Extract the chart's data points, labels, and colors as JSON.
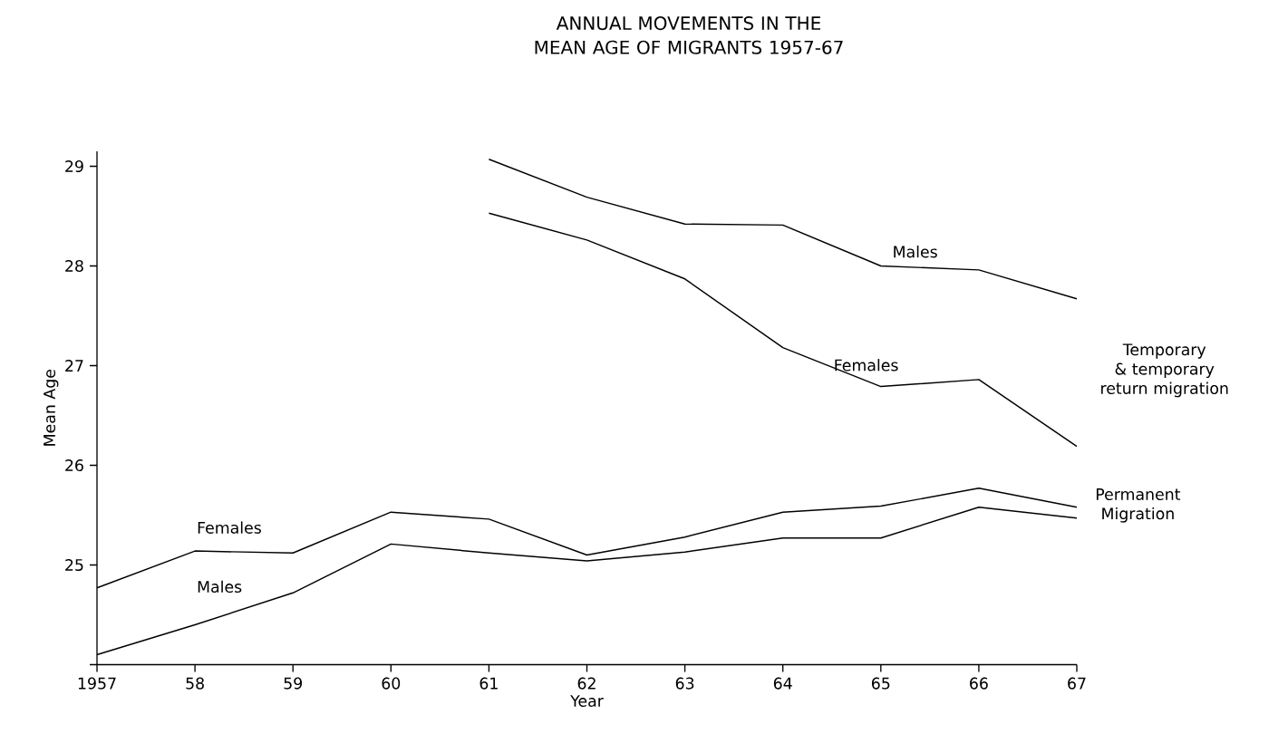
{
  "chart_data": {
    "type": "line",
    "title": "ANNUAL MOVEMENTS IN THE MEAN AGE OF MIGRANTS 1957-67",
    "xlabel": "Year",
    "ylabel": "Mean Age",
    "categories": [
      "1957",
      "58",
      "59",
      "60",
      "61",
      "62",
      "63",
      "64",
      "65",
      "66",
      "67"
    ],
    "series": [
      {
        "name": "Females",
        "color": "#000000",
        "values": [
          24.77,
          25.14,
          25.12,
          25.53,
          25.46,
          25.1,
          25.28,
          25.53,
          25.59,
          25.77,
          25.58
        ]
      },
      {
        "name": "Males",
        "color": "#000000",
        "values": [
          24.1,
          24.4,
          24.72,
          25.21,
          25.12,
          25.04,
          25.13,
          25.27,
          25.27,
          25.58,
          25.47
        ]
      },
      {
        "name": "Males",
        "color": "#000000",
        "values": [
          null,
          null,
          null,
          null,
          29.07,
          28.69,
          28.42,
          28.41,
          28.0,
          27.96,
          27.67
        ]
      },
      {
        "name": "Females",
        "color": "#000000",
        "values": [
          null,
          null,
          null,
          null,
          28.53,
          28.26,
          27.87,
          27.18,
          26.79,
          26.86,
          26.19
        ]
      }
    ],
    "annotations": [
      "Temporary & temporary return migration",
      "Permanent Migration"
    ],
    "ylim": [
      24,
      29.15
    ],
    "yticks": [
      {
        "value": 24,
        "label": null
      },
      25,
      26,
      27,
      28,
      29
    ],
    "legend": false,
    "marker": "none",
    "line_style": "solid",
    "grid": false
  }
}
